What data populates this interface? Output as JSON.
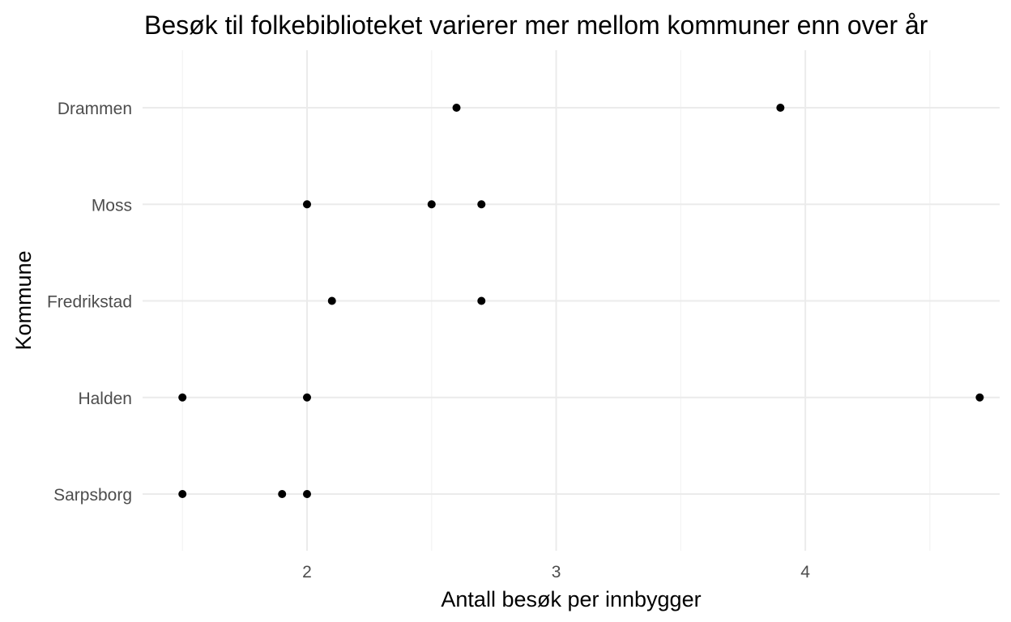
{
  "chart_data": {
    "type": "scatter",
    "title": "Besøk til folkebiblioteket varierer mer mellom kommuner enn over år",
    "xlabel": "Antall besøk per innbygger",
    "ylabel": "Kommune",
    "xlim": [
      1.34,
      4.78
    ],
    "x_ticks": [
      2,
      3,
      4
    ],
    "x_minor_ticks": [
      1.5,
      2.5,
      3.5,
      4.5
    ],
    "categories": [
      "Drammen",
      "Moss",
      "Fredrikstad",
      "Halden",
      "Sarpsborg"
    ],
    "grid": true,
    "legend": "none",
    "point_color": "#000000",
    "points": [
      {
        "category": "Drammen",
        "x": 2.6
      },
      {
        "category": "Drammen",
        "x": 3.9
      },
      {
        "category": "Moss",
        "x": 2.0
      },
      {
        "category": "Moss",
        "x": 2.5
      },
      {
        "category": "Moss",
        "x": 2.7
      },
      {
        "category": "Fredrikstad",
        "x": 2.1
      },
      {
        "category": "Fredrikstad",
        "x": 2.7
      },
      {
        "category": "Halden",
        "x": 1.5
      },
      {
        "category": "Halden",
        "x": 2.0
      },
      {
        "category": "Halden",
        "x": 4.7
      },
      {
        "category": "Sarpsborg",
        "x": 1.5
      },
      {
        "category": "Sarpsborg",
        "x": 1.9
      },
      {
        "category": "Sarpsborg",
        "x": 2.0
      }
    ]
  }
}
